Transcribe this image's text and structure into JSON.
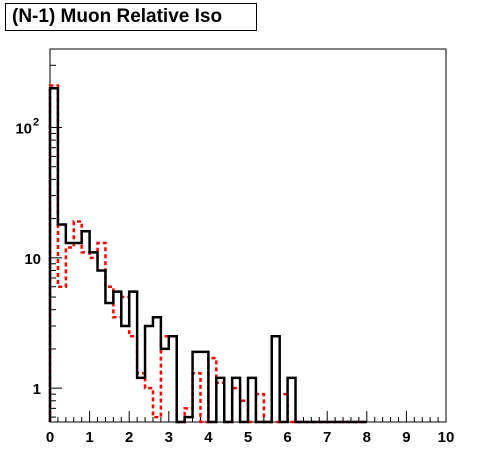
{
  "chart_data": {
    "type": "histogram",
    "title": "(N-1) Muon Relative Iso",
    "xlabel": "",
    "ylabel": "",
    "xlim": [
      0,
      10
    ],
    "ylim": [
      0.55,
      400
    ],
    "log_y": true,
    "grid": false,
    "x_ticks": [
      "0",
      "1",
      "2",
      "3",
      "4",
      "5",
      "6",
      "7",
      "8",
      "9",
      "10"
    ],
    "x_tick_values": [
      0,
      1,
      2,
      3,
      4,
      5,
      6,
      7,
      8,
      9,
      10
    ],
    "y_ticks": [
      {
        "value": 1,
        "label": "1"
      },
      {
        "value": 10,
        "label": "10"
      },
      {
        "value": 100,
        "label": "10",
        "exponent": "2"
      }
    ],
    "bin_width": 0.2,
    "series": [
      {
        "color": "#000000",
        "style": "solid",
        "values": [
          200,
          18,
          13,
          13,
          16,
          11,
          8,
          4.5,
          5.5,
          3,
          5.5,
          1.2,
          3,
          3.5,
          2,
          2.5,
          0,
          0.6,
          1.9,
          1.9,
          0,
          1.2,
          0,
          1.2,
          0,
          1.2,
          0,
          0,
          2.5,
          0,
          1.2,
          0,
          0,
          0,
          0,
          0,
          0,
          0,
          0,
          0
        ]
      },
      {
        "color": "#ff0000",
        "style": "dashed",
        "values": [
          210,
          6,
          12,
          19,
          11,
          10,
          13,
          6,
          3.5,
          5,
          2.5,
          1.3,
          1,
          0.6,
          2.5,
          2.5,
          0,
          0.7,
          1.3,
          0,
          1.7,
          1.1,
          0,
          1,
          0.8,
          0,
          0.9,
          0,
          0,
          0.9,
          0,
          0,
          0,
          0,
          0,
          0,
          0,
          0,
          0,
          0
        ]
      }
    ]
  }
}
